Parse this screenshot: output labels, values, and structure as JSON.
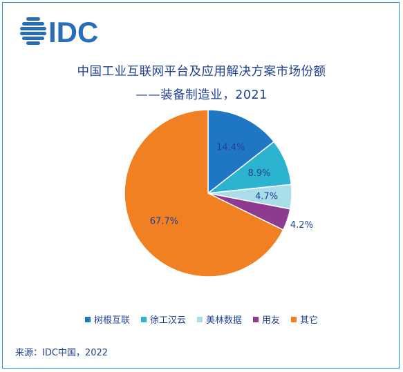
{
  "brand": {
    "logo_text": "IDC",
    "logo_color": "#2b6cb8"
  },
  "chart_data": {
    "type": "pie",
    "title": "中国工业互联网平台及应用解决方案市场份额",
    "subtitle": "——装备制造业，2021",
    "slices": [
      {
        "name": "树根互联",
        "value": 14.4,
        "label": "14.4%",
        "color": "#1f77c4"
      },
      {
        "name": "徐工汉云",
        "value": 8.9,
        "label": "8.9%",
        "color": "#2bb3cf"
      },
      {
        "name": "美林数据",
        "value": 4.7,
        "label": "4.7%",
        "color": "#a8dde9"
      },
      {
        "name": "用友",
        "value": 4.2,
        "label": "4.2%",
        "color": "#8e3a8f"
      },
      {
        "name": "其它",
        "value": 67.7,
        "label": "67.7%",
        "color": "#f08021"
      }
    ],
    "legend_position": "bottom"
  },
  "source": "来源：IDC中国，2022"
}
